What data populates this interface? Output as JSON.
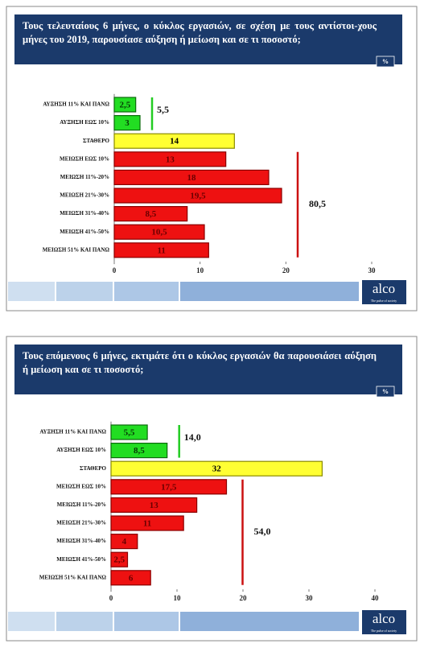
{
  "chart_data": [
    {
      "type": "bar",
      "orientation": "horizontal",
      "title": "Τους τελευταίους 6 μήνες, ο κύκλος εργασιών, σε σχέση με τους αντίστοι-χους μήνες του 2019, παρουσίασε αύξηση ή μείωση και σε τι ποσοστό;",
      "badge": "%",
      "categories": [
        "ΑΥΞΗΣΗ 11% ΚΑΙ ΠΑΝΩ",
        "ΑΥΞΗΣΗ ΕΩΣ 10%",
        "ΣΤΑΘΕΡΟ",
        "ΜΕΙΩΣΗ ΕΩΣ 10%",
        "ΜΕΙΩΣΗ 11%-20%",
        "ΜΕΙΩΣΗ 21%-30%",
        "ΜΕΙΩΣΗ 31%-40%",
        "ΜΕΙΩΣΗ 41%-50%",
        "ΜΕΙΩΣΗ 51% ΚΑΙ ΠΑΝΩ"
      ],
      "values": [
        2.5,
        3,
        14,
        13,
        18,
        19.5,
        8.5,
        10.5,
        11
      ],
      "value_labels": [
        "2,5",
        "3",
        "14",
        "13",
        "18",
        "19,5",
        "8,5",
        "10,5",
        "11"
      ],
      "colors": [
        "#22dd22",
        "#22dd22",
        "#ffff33",
        "#ee1111",
        "#ee1111",
        "#ee1111",
        "#ee1111",
        "#ee1111",
        "#ee1111"
      ],
      "annotations": [
        "5,5",
        "80,5"
      ],
      "xlim": [
        0,
        30
      ],
      "xticks": [
        0,
        10,
        20,
        30
      ]
    },
    {
      "type": "bar",
      "orientation": "horizontal",
      "title": "Τους επόμενους 6 μήνες, εκτιμάτε ότι ο κύκλος εργασιών θα παρουσιάσει αύξηση ή μείωση και σε τι ποσοστό;",
      "badge": "%",
      "categories": [
        "ΑΥΞΗΣΗ 11% ΚΑΙ ΠΑΝΩ",
        "ΑΥΞΗΣΗ ΕΩΣ 10%",
        "ΣΤΑΘΕΡΟ",
        "ΜΕΙΩΣΗ ΕΩΣ 10%",
        "ΜΕΙΩΣΗ 11%-20%",
        "ΜΕΙΩΣΗ 21%-30%",
        "ΜΕΙΩΣΗ 31%-40%",
        "ΜΕΙΩΣΗ 41%-50%",
        "ΜΕΙΩΣΗ 51% ΚΑΙ ΠΑΝΩ"
      ],
      "values": [
        5.5,
        8.5,
        32,
        17.5,
        13,
        11,
        4,
        2.5,
        6
      ],
      "value_labels": [
        "5,5",
        "8,5",
        "32",
        "17,5",
        "13",
        "11",
        "4",
        "2,5",
        "6"
      ],
      "colors": [
        "#22dd22",
        "#22dd22",
        "#ffff33",
        "#ee1111",
        "#ee1111",
        "#ee1111",
        "#ee1111",
        "#ee1111",
        "#ee1111"
      ],
      "annotations": [
        "14,0",
        "54,0"
      ],
      "xlim": [
        0,
        40
      ],
      "xticks": [
        0,
        10,
        20,
        30,
        40
      ]
    }
  ],
  "branding": {
    "logo": "alco",
    "tagline": "The pulse of society"
  }
}
